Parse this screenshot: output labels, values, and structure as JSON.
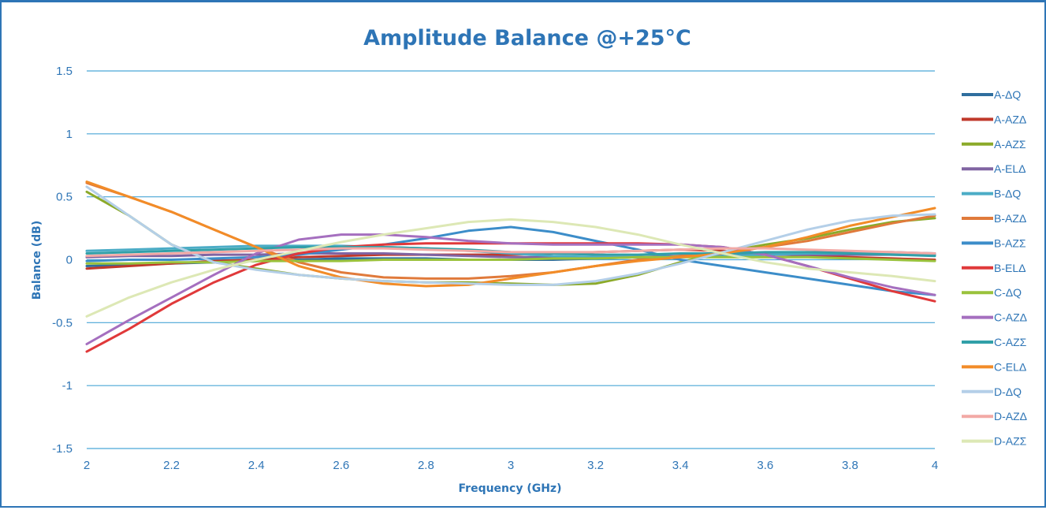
{
  "chart_data": {
    "type": "line",
    "title": "Amplitude Balance @+25°C",
    "xlabel": "Frequency (GHz)",
    "ylabel": "Balance (dB)",
    "xlim": [
      2,
      4
    ],
    "ylim": [
      -1.5,
      1.5
    ],
    "x_ticks": [
      "2",
      "2.2",
      "2.4",
      "2.6",
      "2.8",
      "3",
      "3.2",
      "3.4",
      "3.6",
      "3.8",
      "4"
    ],
    "y_ticks": [
      "1.5",
      "1",
      "0.5",
      "0",
      "-0.5",
      "-1",
      "-1.5"
    ],
    "grid": "horizontal",
    "legend_position": "right",
    "x": [
      2.0,
      2.1,
      2.2,
      2.3,
      2.4,
      2.5,
      2.6,
      2.7,
      2.8,
      2.9,
      3.0,
      3.1,
      3.2,
      3.3,
      3.4,
      3.5,
      3.6,
      3.7,
      3.8,
      3.9,
      4.0
    ],
    "series": [
      {
        "name": "A-ΔQ",
        "color": "#2f6e9e",
        "values": [
          -0.05,
          -0.04,
          -0.03,
          -0.02,
          -0.01,
          0.0,
          0.01,
          0.01,
          0.01,
          0.0,
          0.0,
          0.0,
          0.01,
          0.02,
          0.03,
          0.04,
          0.05,
          0.06,
          0.06,
          0.06,
          0.05
        ]
      },
      {
        "name": "A-AZΔ",
        "color": "#c0392b",
        "values": [
          -0.07,
          -0.05,
          -0.03,
          -0.01,
          0.0,
          0.02,
          0.03,
          0.04,
          0.04,
          0.04,
          0.04,
          0.05,
          0.06,
          0.07,
          0.08,
          0.07,
          0.05,
          0.03,
          0.02,
          0.01,
          0.0
        ]
      },
      {
        "name": "A-AZΣ",
        "color": "#8caa2a",
        "values": [
          0.54,
          0.35,
          0.12,
          -0.02,
          -0.07,
          -0.12,
          -0.15,
          -0.17,
          -0.18,
          -0.18,
          -0.19,
          -0.2,
          -0.19,
          -0.12,
          -0.02,
          0.06,
          0.12,
          0.17,
          0.24,
          0.3,
          0.33
        ]
      },
      {
        "name": "A-ELΔ",
        "color": "#8064a2",
        "values": [
          0.02,
          0.03,
          0.03,
          0.04,
          0.04,
          0.05,
          0.05,
          0.05,
          0.04,
          0.03,
          0.02,
          0.02,
          0.02,
          0.02,
          0.03,
          0.03,
          0.04,
          0.04,
          0.04,
          0.04,
          0.04
        ]
      },
      {
        "name": "B-ΔQ",
        "color": "#4bacc6",
        "values": [
          0.07,
          0.08,
          0.09,
          0.1,
          0.11,
          0.11,
          0.11,
          0.1,
          0.09,
          0.07,
          0.05,
          0.03,
          0.02,
          0.02,
          0.02,
          0.03,
          0.04,
          0.05,
          0.05,
          0.05,
          0.04
        ]
      },
      {
        "name": "B-AZΔ",
        "color": "#e07a3b",
        "values": [
          0.61,
          0.5,
          0.38,
          0.24,
          0.1,
          -0.02,
          -0.1,
          -0.14,
          -0.15,
          -0.15,
          -0.13,
          -0.1,
          -0.05,
          0.0,
          0.03,
          0.06,
          0.1,
          0.15,
          0.22,
          0.29,
          0.35
        ]
      },
      {
        "name": "B-AZΣ",
        "color": "#3c8dc9",
        "values": [
          -0.01,
          0.0,
          0.0,
          0.01,
          0.02,
          0.04,
          0.08,
          0.12,
          0.17,
          0.23,
          0.26,
          0.22,
          0.15,
          0.08,
          0.0,
          -0.05,
          -0.1,
          -0.15,
          -0.2,
          -0.25,
          -0.28
        ]
      },
      {
        "name": "B-ELΔ",
        "color": "#e0393a",
        "values": [
          -0.73,
          -0.55,
          -0.35,
          -0.18,
          -0.04,
          0.05,
          0.1,
          0.12,
          0.13,
          0.13,
          0.13,
          0.13,
          0.13,
          0.13,
          0.12,
          0.1,
          0.04,
          -0.05,
          -0.15,
          -0.25,
          -0.33
        ]
      },
      {
        "name": "C-ΔQ",
        "color": "#9ac23c",
        "values": [
          -0.03,
          -0.03,
          -0.02,
          -0.02,
          -0.01,
          -0.01,
          -0.01,
          0.0,
          0.0,
          0.0,
          0.0,
          0.01,
          0.01,
          0.02,
          0.02,
          0.02,
          0.02,
          0.02,
          0.01,
          0.0,
          -0.01
        ]
      },
      {
        "name": "C-AZΔ",
        "color": "#a56fbf",
        "values": [
          -0.67,
          -0.48,
          -0.3,
          -0.12,
          0.05,
          0.16,
          0.2,
          0.2,
          0.18,
          0.15,
          0.13,
          0.12,
          0.12,
          0.12,
          0.12,
          0.1,
          0.04,
          -0.05,
          -0.14,
          -0.22,
          -0.28
        ]
      },
      {
        "name": "C-AZΣ",
        "color": "#31a0a8",
        "values": [
          0.05,
          0.06,
          0.07,
          0.08,
          0.09,
          0.1,
          0.1,
          0.1,
          0.09,
          0.08,
          0.06,
          0.05,
          0.04,
          0.04,
          0.05,
          0.05,
          0.06,
          0.06,
          0.05,
          0.04,
          0.03
        ]
      },
      {
        "name": "C-ELΔ",
        "color": "#f28c28",
        "values": [
          0.62,
          0.5,
          0.38,
          0.24,
          0.1,
          -0.05,
          -0.14,
          -0.19,
          -0.21,
          -0.2,
          -0.15,
          -0.1,
          -0.05,
          -0.01,
          0.02,
          0.05,
          0.1,
          0.18,
          0.27,
          0.34,
          0.41
        ]
      },
      {
        "name": "D-ΔQ",
        "color": "#b4cfe8",
        "values": [
          0.58,
          0.35,
          0.12,
          -0.02,
          -0.08,
          -0.12,
          -0.15,
          -0.17,
          -0.18,
          -0.19,
          -0.2,
          -0.2,
          -0.17,
          -0.11,
          -0.03,
          0.06,
          0.15,
          0.24,
          0.31,
          0.35,
          0.36
        ]
      },
      {
        "name": "D-AZΔ",
        "color": "#f2a9a5",
        "values": [
          0.03,
          0.04,
          0.05,
          0.06,
          0.07,
          0.08,
          0.09,
          0.09,
          0.08,
          0.07,
          0.06,
          0.06,
          0.06,
          0.07,
          0.08,
          0.09,
          0.09,
          0.08,
          0.07,
          0.06,
          0.05
        ]
      },
      {
        "name": "D-AZΣ",
        "color": "#dde8b5",
        "values": [
          -0.45,
          -0.3,
          -0.18,
          -0.08,
          0.0,
          0.07,
          0.14,
          0.2,
          0.25,
          0.3,
          0.32,
          0.3,
          0.26,
          0.2,
          0.12,
          0.05,
          -0.02,
          -0.07,
          -0.1,
          -0.13,
          -0.17
        ]
      }
    ]
  }
}
